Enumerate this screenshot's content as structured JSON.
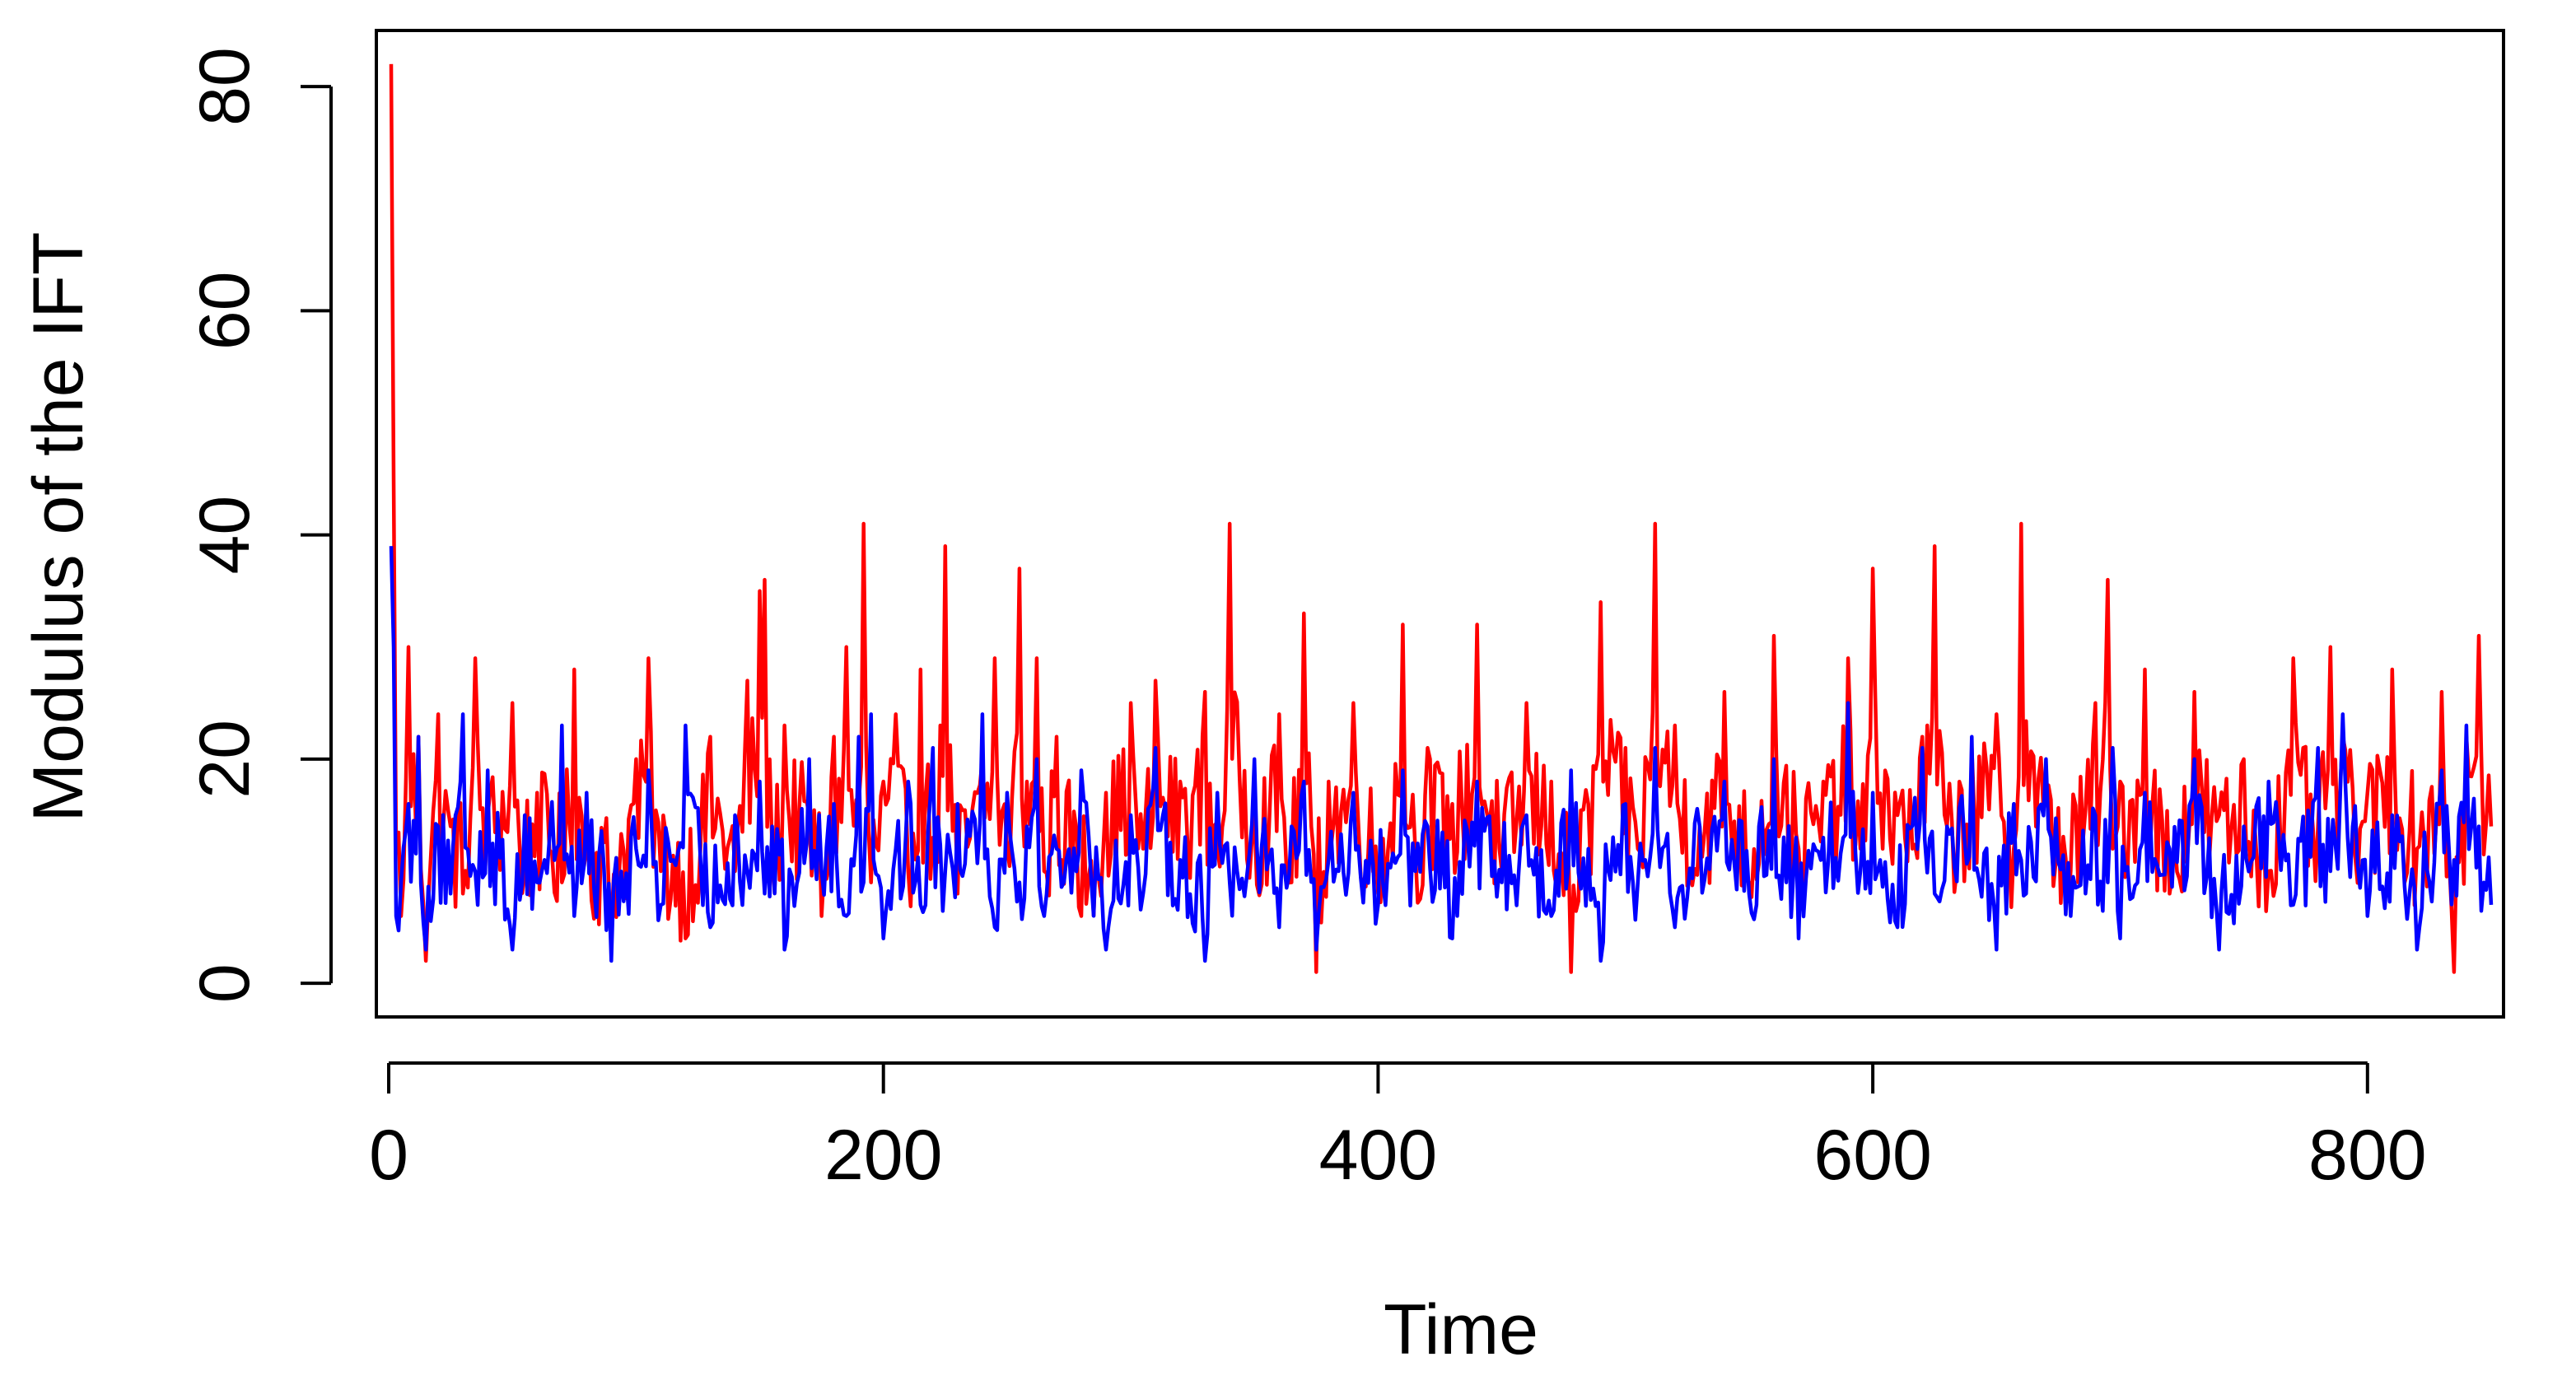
{
  "chart_data": {
    "type": "line",
    "title": "",
    "xlabel": "Time",
    "ylabel": "Modulus of the IFT",
    "xlim": [
      -5,
      855
    ],
    "ylim": [
      -3,
      85
    ],
    "x_ticks": [
      0,
      200,
      400,
      600,
      800
    ],
    "x_tick_labels": [
      "0",
      "200",
      "400",
      "600",
      "800"
    ],
    "y_ticks": [
      0,
      20,
      40,
      60,
      80
    ],
    "y_tick_labels": [
      "0",
      "20",
      "40",
      "60",
      "80"
    ],
    "grid": false,
    "legend": "none",
    "x_range": [
      1,
      850
    ],
    "series": [
      {
        "color": "#ff0000",
        "x": [
          1,
          2,
          3,
          5,
          8,
          12,
          15,
          20,
          25,
          30,
          35,
          40,
          50,
          55,
          60,
          70,
          75,
          80,
          90,
          100,
          105,
          110,
          120,
          130,
          140,
          145,
          150,
          152,
          155,
          160,
          170,
          175,
          180,
          185,
          190,
          192,
          195,
          200,
          205,
          210,
          215,
          220,
          225,
          230,
          240,
          245,
          250,
          255,
          258,
          262,
          265,
          270,
          280,
          290,
          300,
          305,
          310,
          320,
          330,
          335,
          340,
          350,
          360,
          365,
          370,
          375,
          380,
          390,
          400,
          410,
          415,
          420,
          430,
          440,
          450,
          460,
          470,
          478,
          485,
          490,
          500,
          505,
          512,
          520,
          530,
          540,
          550,
          560,
          570,
          580,
          590,
          595,
          600,
          610,
          620,
          625,
          630,
          640,
          650,
          657,
          660,
          670,
          680,
          690,
          695,
          697,
          700,
          710,
          720,
          730,
          740,
          750,
          760,
          770,
          780,
          785,
          790,
          800,
          810,
          820,
          830,
          835,
          840,
          845,
          850
        ],
        "values": [
          82,
          45,
          12,
          6,
          30,
          22,
          2,
          24,
          14,
          8,
          29,
          15,
          25,
          10,
          17,
          9,
          28,
          12,
          5,
          20,
          29,
          10,
          4,
          22,
          10,
          27,
          35,
          36,
          12,
          23,
          15,
          6,
          22,
          30,
          16,
          41,
          9,
          18,
          24,
          10,
          28,
          13,
          39,
          8,
          20,
          29,
          12,
          37,
          18,
          29,
          10,
          22,
          6,
          17,
          25,
          12,
          27,
          18,
          26,
          12,
          41,
          15,
          24,
          9,
          33,
          1,
          18,
          25,
          8,
          32,
          12,
          21,
          16,
          32,
          10,
          25,
          18,
          1,
          16,
          34,
          21,
          12,
          41,
          23,
          14,
          26,
          9,
          31,
          12,
          18,
          29,
          12,
          37,
          15,
          22,
          39,
          14,
          21,
          24,
          12,
          41,
          17,
          10,
          25,
          36,
          12,
          18,
          28,
          8,
          26,
          15,
          20,
          10,
          29,
          14,
          30,
          22,
          17,
          28,
          12,
          26,
          1,
          22,
          31,
          14
        ]
      },
      {
        "color": "#0000ff",
        "x": [
          1,
          2,
          3,
          5,
          8,
          12,
          15,
          20,
          25,
          30,
          35,
          40,
          50,
          55,
          60,
          70,
          75,
          80,
          90,
          100,
          105,
          110,
          120,
          130,
          140,
          145,
          150,
          152,
          155,
          160,
          170,
          175,
          180,
          185,
          190,
          192,
          195,
          200,
          205,
          210,
          215,
          220,
          225,
          230,
          240,
          245,
          250,
          255,
          258,
          262,
          265,
          270,
          280,
          290,
          300,
          305,
          310,
          320,
          330,
          335,
          340,
          350,
          360,
          365,
          370,
          375,
          380,
          390,
          400,
          410,
          415,
          420,
          430,
          440,
          450,
          460,
          470,
          478,
          485,
          490,
          500,
          505,
          512,
          520,
          530,
          540,
          550,
          560,
          570,
          580,
          590,
          595,
          600,
          610,
          620,
          625,
          630,
          640,
          650,
          657,
          660,
          670,
          680,
          690,
          695,
          697,
          700,
          710,
          720,
          730,
          740,
          750,
          760,
          770,
          780,
          785,
          790,
          800,
          810,
          820,
          830,
          835,
          840,
          845,
          850
        ],
        "values": [
          39,
          30,
          6,
          9,
          16,
          22,
          3,
          14,
          8,
          24,
          10,
          19,
          3,
          15,
          9,
          23,
          6,
          17,
          2,
          12,
          19,
          7,
          23,
          5,
          15,
          10,
          18,
          8,
          14,
          3,
          20,
          10,
          16,
          6,
          22,
          9,
          24,
          4,
          12,
          18,
          7,
          21,
          10,
          16,
          24,
          5,
          17,
          9,
          14,
          20,
          6,
          12,
          19,
          3,
          15,
          8,
          21,
          11,
          2,
          17,
          9,
          20,
          5,
          14,
          18,
          3,
          11,
          17,
          7,
          19,
          10,
          14,
          4,
          18,
          9,
          15,
          6,
          19,
          12,
          2,
          16,
          9,
          21,
          5,
          14,
          18,
          8,
          20,
          4,
          13,
          25,
          10,
          17,
          5,
          21,
          8,
          14,
          22,
          3,
          16,
          11,
          20,
          6,
          15,
          9,
          21,
          4,
          17,
          12,
          20,
          3,
          14,
          18,
          7,
          21,
          10,
          24,
          6,
          15,
          3,
          19,
          11,
          23,
          14,
          7
        ]
      }
    ]
  }
}
